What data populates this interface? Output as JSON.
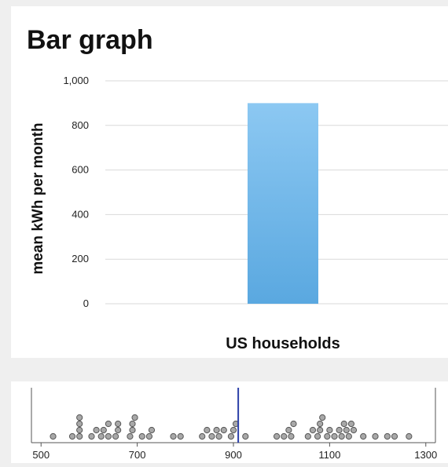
{
  "chart_data": [
    {
      "type": "bar",
      "title": "Bar graph",
      "categories": [
        "US households"
      ],
      "values": [
        900
      ],
      "xlabel": "US households",
      "ylabel": "mean kWh per month",
      "ylim": [
        0,
        1000
      ],
      "yticks": [
        "0",
        "200",
        "400",
        "600",
        "800",
        "1,000"
      ],
      "grid": true,
      "bar_color": "#5aa8e0"
    },
    {
      "type": "scatter",
      "subtype": "dot-plot",
      "xlim": [
        480,
        1320
      ],
      "xticks": [
        "500",
        "700",
        "900",
        "1100",
        "1300"
      ],
      "reference_line": 910,
      "reference_color": "#2b3fa8",
      "dot_color": "#a8a8a8",
      "values": [
        525,
        565,
        580,
        580,
        580,
        580,
        605,
        615,
        625,
        630,
        640,
        640,
        655,
        660,
        660,
        685,
        690,
        690,
        695,
        710,
        725,
        730,
        775,
        790,
        835,
        845,
        855,
        865,
        870,
        880,
        895,
        900,
        905,
        925,
        990,
        1005,
        1015,
        1020,
        1025,
        1055,
        1065,
        1075,
        1080,
        1080,
        1085,
        1095,
        1100,
        1110,
        1120,
        1125,
        1130,
        1135,
        1140,
        1145,
        1150,
        1170,
        1195,
        1220,
        1235,
        1265
      ]
    }
  ]
}
